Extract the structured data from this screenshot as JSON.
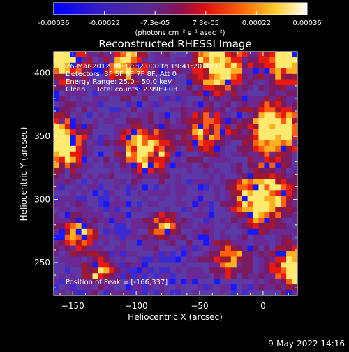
{
  "chart_data": {
    "type": "heatmap",
    "title": "Reconstructed RHESSI Image",
    "xlabel": "Heliocentric X (arcsec)",
    "ylabel": "Heliocentric Y (arcsec)",
    "xlim": [
      -165,
      27
    ],
    "ylim": [
      224,
      417
    ],
    "x_ticks": [
      -150,
      -100,
      -50,
      0
    ],
    "y_ticks": [
      250,
      300,
      350,
      400
    ],
    "colorbar": {
      "ticks": [
        "-0.00036",
        "-0.00022",
        "-7.3e-05",
        "7.3e-05",
        "0.00022",
        "0.00036"
      ],
      "unit_line": "(photons cm⁻² s⁻¹ asec⁻²)",
      "range": [
        -0.00036,
        0.00036
      ]
    },
    "annotations": [
      "26-Mar-2012 19:37:32.000 to 19:41:20.000",
      "Detectors: 3F 5F 6F 7F 8F, Att 0",
      "Energy Range: 25.0 - 50.0 keV",
      "Clean     Total counts: 2.99E+03"
    ],
    "peak_label": "Position of Peak = [-166,337]",
    "grid": false
  },
  "footer": {
    "timestamp": "9-May-2022 14:16"
  },
  "colors": {
    "background": "#000000",
    "colormap": [
      "#1010ff",
      "#5a3aa8",
      "#6a2a9c",
      "#b01838",
      "#ff3010",
      "#ff9a10",
      "#ffe860",
      "#ffffff"
    ]
  }
}
